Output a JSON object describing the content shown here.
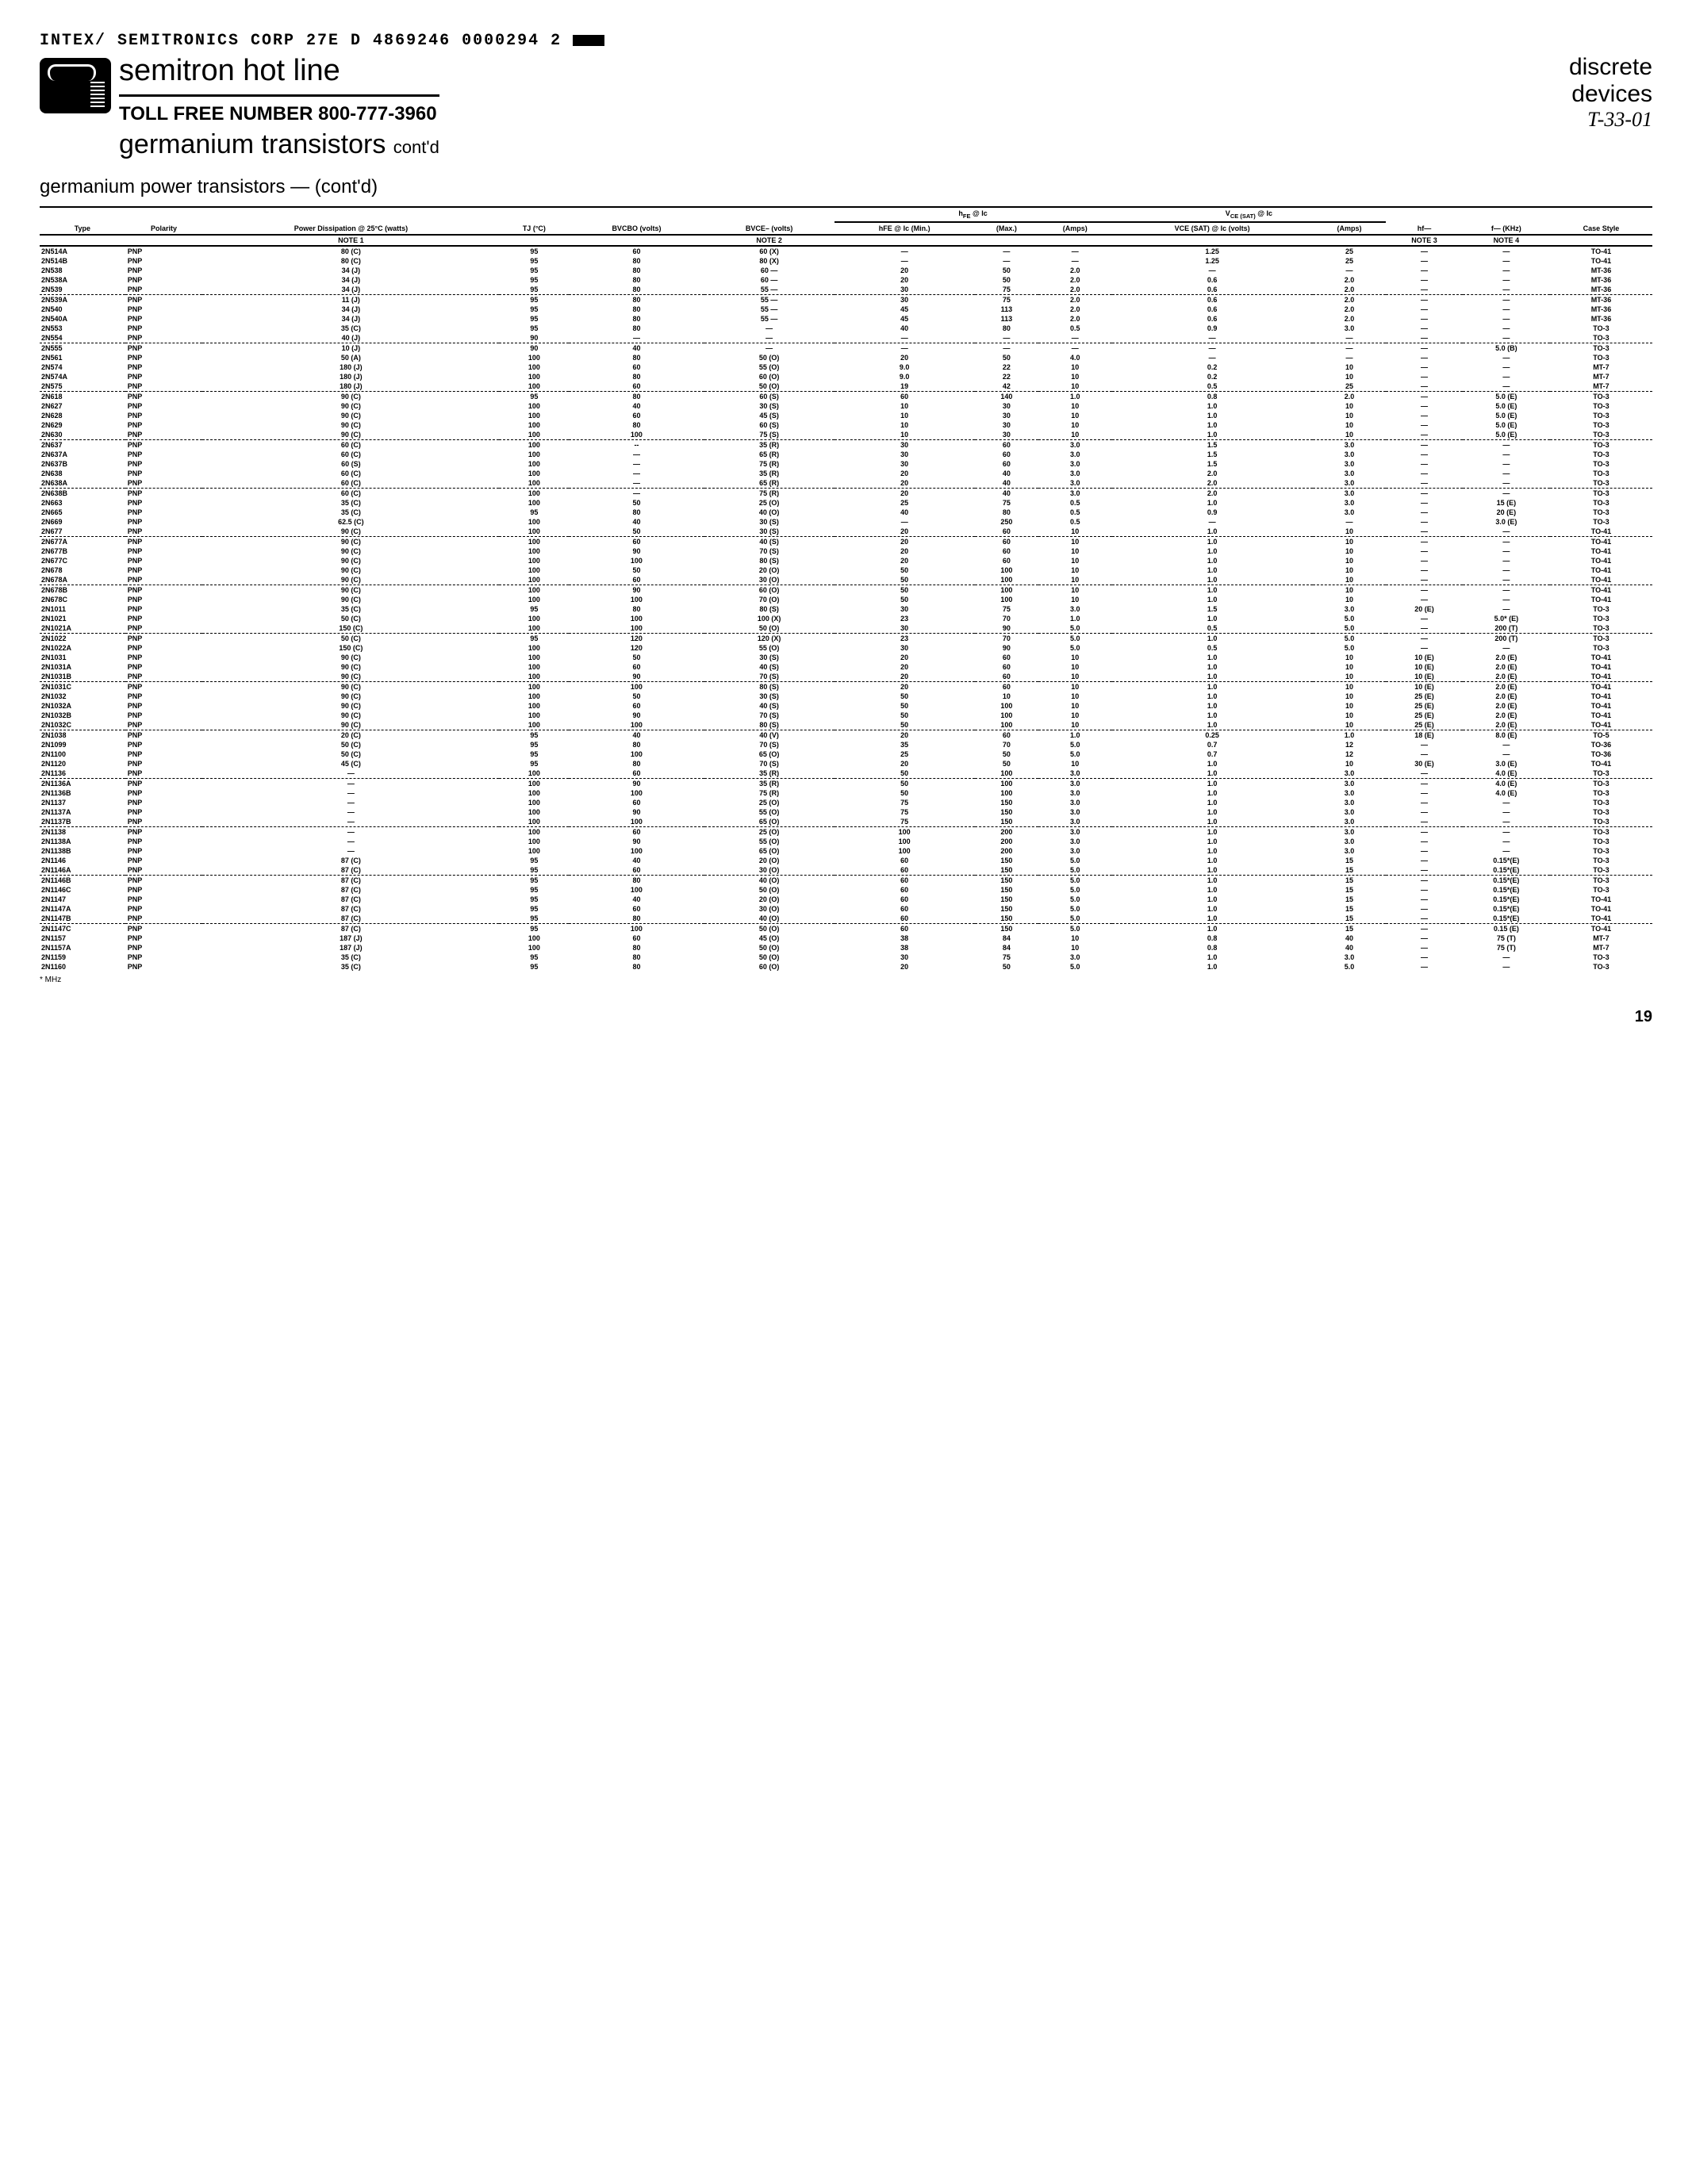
{
  "header": {
    "code_line": "INTEX/ SEMITRONICS CORP    27E D    4869246 0000294 2",
    "main_title": "semitron hot line",
    "toll_free": "TOLL FREE NUMBER 800-777-3960",
    "page_title": "germanium transistors",
    "contd": "cont'd",
    "side1": "discrete",
    "side2": "devices",
    "side_hand": "T-33-01",
    "subtitle": "germanium power transistors — (cont'd)"
  },
  "columns": [
    "Type",
    "Polarity",
    "Power Dissipation @ 25°C (watts)",
    "TJ (°C)",
    "BVCBO (volts)",
    "BVCE– (volts)",
    "hFE @ Ic (Min.)",
    "(Max.)",
    "(Amps)",
    "VCE (SAT) @ Ic (volts)",
    "(Amps)",
    "hf—",
    "f— (KHz)",
    "Case Style"
  ],
  "notes": {
    "c2": "NOTE 1",
    "c5": "NOTE 2",
    "c11": "NOTE 3",
    "c12": "NOTE 4"
  },
  "groups": [
    [
      [
        "2N514A",
        "PNP",
        "80 (C)",
        "95",
        "60",
        "60 (X)",
        "—",
        "—",
        "—",
        "1.25",
        "25",
        "—",
        "—",
        "TO-41"
      ],
      [
        "2N514B",
        "PNP",
        "80 (C)",
        "95",
        "80",
        "80 (X)",
        "—",
        "—",
        "—",
        "1.25",
        "25",
        "—",
        "—",
        "TO-41"
      ],
      [
        "2N538",
        "PNP",
        "34 (J)",
        "95",
        "80",
        "60 —",
        "20",
        "50",
        "2.0",
        "—",
        "—",
        "—",
        "—",
        "MT-36"
      ],
      [
        "2N538A",
        "PNP",
        "34 (J)",
        "95",
        "80",
        "60 —",
        "20",
        "50",
        "2.0",
        "0.6",
        "2.0",
        "—",
        "—",
        "MT-36"
      ],
      [
        "2N539",
        "PNP",
        "34 (J)",
        "95",
        "80",
        "55 —",
        "30",
        "75",
        "2.0",
        "0.6",
        "2.0",
        "—",
        "—",
        "MT-36"
      ]
    ],
    [
      [
        "2N539A",
        "PNP",
        "11 (J)",
        "95",
        "80",
        "55 —",
        "30",
        "75",
        "2.0",
        "0.6",
        "2.0",
        "—",
        "—",
        "MT-36"
      ],
      [
        "2N540",
        "PNP",
        "34 (J)",
        "95",
        "80",
        "55 —",
        "45",
        "113",
        "2.0",
        "0.6",
        "2.0",
        "—",
        "—",
        "MT-36"
      ],
      [
        "2N540A",
        "PNP",
        "34 (J)",
        "95",
        "80",
        "55 —",
        "45",
        "113",
        "2.0",
        "0.6",
        "2.0",
        "—",
        "—",
        "MT-36"
      ],
      [
        "2N553",
        "PNP",
        "35 (C)",
        "95",
        "80",
        "—",
        "40",
        "80",
        "0.5",
        "0.9",
        "3.0",
        "—",
        "—",
        "TO-3"
      ],
      [
        "2N554",
        "PNP",
        "40 (J)",
        "90",
        "—",
        "—",
        "—",
        "—",
        "—",
        "—",
        "—",
        "—",
        "—",
        "TO-3"
      ]
    ],
    [
      [
        "2N555",
        "PNP",
        "10 (J)",
        "90",
        "40",
        "—",
        "—",
        "—",
        "—",
        "—",
        "—",
        "—",
        "5.0 (B)",
        "TO-3"
      ],
      [
        "2N561",
        "PNP",
        "50 (A)",
        "100",
        "80",
        "50 (O)",
        "20",
        "50",
        "4.0",
        "—",
        "—",
        "—",
        "—",
        "TO-3"
      ],
      [
        "2N574",
        "PNP",
        "180 (J)",
        "100",
        "60",
        "55 (O)",
        "9.0",
        "22",
        "10",
        "0.2",
        "10",
        "—",
        "—",
        "MT-7"
      ],
      [
        "2N574A",
        "PNP",
        "180 (J)",
        "100",
        "80",
        "60 (O)",
        "9.0",
        "22",
        "10",
        "0.2",
        "10",
        "—",
        "—",
        "MT-7"
      ],
      [
        "2N575",
        "PNP",
        "180 (J)",
        "100",
        "60",
        "50 (O)",
        "19",
        "42",
        "10",
        "0.5",
        "25",
        "—",
        "—",
        "MT-7"
      ]
    ],
    [
      [
        "2N618",
        "PNP",
        "90 (C)",
        "95",
        "80",
        "60 (S)",
        "60",
        "140",
        "1.0",
        "0.8",
        "2.0",
        "—",
        "5.0 (E)",
        "TO-3"
      ],
      [
        "2N627",
        "PNP",
        "90 (C)",
        "100",
        "40",
        "30 (S)",
        "10",
        "30",
        "10",
        "1.0",
        "10",
        "—",
        "5.0 (E)",
        "TO-3"
      ],
      [
        "2N628",
        "PNP",
        "90 (C)",
        "100",
        "60",
        "45 (S)",
        "10",
        "30",
        "10",
        "1.0",
        "10",
        "—",
        "5.0 (E)",
        "TO-3"
      ],
      [
        "2N629",
        "PNP",
        "90 (C)",
        "100",
        "80",
        "60 (S)",
        "10",
        "30",
        "10",
        "1.0",
        "10",
        "—",
        "5.0 (E)",
        "TO-3"
      ],
      [
        "2N630",
        "PNP",
        "90 (C)",
        "100",
        "100",
        "75 (S)",
        "10",
        "30",
        "10",
        "1.0",
        "10",
        "—",
        "5.0 (E)",
        "TO-3"
      ]
    ],
    [
      [
        "2N637",
        "PNP",
        "60 (C)",
        "100",
        "--",
        "35 (R)",
        "30",
        "60",
        "3.0",
        "1.5",
        "3.0",
        "—",
        "—",
        "TO-3"
      ],
      [
        "2N637A",
        "PNP",
        "60 (C)",
        "100",
        "—",
        "65 (R)",
        "30",
        "60",
        "3.0",
        "1.5",
        "3.0",
        "—",
        "—",
        "TO-3"
      ],
      [
        "2N637B",
        "PNP",
        "60 (S)",
        "100",
        "—",
        "75 (R)",
        "30",
        "60",
        "3.0",
        "1.5",
        "3.0",
        "—",
        "—",
        "TO-3"
      ],
      [
        "2N638",
        "PNP",
        "60 (C)",
        "100",
        "—",
        "35 (R)",
        "20",
        "40",
        "3.0",
        "2.0",
        "3.0",
        "—",
        "—",
        "TO-3"
      ],
      [
        "2N638A",
        "PNP",
        "60 (C)",
        "100",
        "—",
        "65 (R)",
        "20",
        "40",
        "3.0",
        "2.0",
        "3.0",
        "—",
        "—",
        "TO-3"
      ]
    ],
    [
      [
        "2N638B",
        "PNP",
        "60 (C)",
        "100",
        "—",
        "75 (R)",
        "20",
        "40",
        "3.0",
        "2.0",
        "3.0",
        "—",
        "—",
        "TO-3"
      ],
      [
        "2N663",
        "PNP",
        "35 (C)",
        "100",
        "50",
        "25 (O)",
        "25",
        "75",
        "0.5",
        "1.0",
        "3.0",
        "—",
        "15 (E)",
        "TO-3"
      ],
      [
        "2N665",
        "PNP",
        "35 (C)",
        "95",
        "80",
        "40 (O)",
        "40",
        "80",
        "0.5",
        "0.9",
        "3.0",
        "—",
        "20 (E)",
        "TO-3"
      ],
      [
        "2N669",
        "PNP",
        "62.5 (C)",
        "100",
        "40",
        "30 (S)",
        "—",
        "250",
        "0.5",
        "—",
        "—",
        "—",
        "3.0 (E)",
        "TO-3"
      ],
      [
        "2N677",
        "PNP",
        "90 (C)",
        "100",
        "50",
        "30 (S)",
        "20",
        "60",
        "10",
        "1.0",
        "10",
        "—",
        "—",
        "TO-41"
      ]
    ],
    [
      [
        "2N677A",
        "PNP",
        "90 (C)",
        "100",
        "60",
        "40 (S)",
        "20",
        "60",
        "10",
        "1.0",
        "10",
        "—",
        "—",
        "TO-41"
      ],
      [
        "2N677B",
        "PNP",
        "90 (C)",
        "100",
        "90",
        "70 (S)",
        "20",
        "60",
        "10",
        "1.0",
        "10",
        "—",
        "—",
        "TO-41"
      ],
      [
        "2N677C",
        "PNP",
        "90 (C)",
        "100",
        "100",
        "80 (S)",
        "20",
        "60",
        "10",
        "1.0",
        "10",
        "—",
        "—",
        "TO-41"
      ],
      [
        "2N678",
        "PNP",
        "90 (C)",
        "100",
        "50",
        "20 (O)",
        "50",
        "100",
        "10",
        "1.0",
        "10",
        "—",
        "—",
        "TO-41"
      ],
      [
        "2N678A",
        "PNP",
        "90 (C)",
        "100",
        "60",
        "30 (O)",
        "50",
        "100",
        "10",
        "1.0",
        "10",
        "—",
        "—",
        "TO-41"
      ]
    ],
    [
      [
        "2N678B",
        "PNP",
        "90 (C)",
        "100",
        "90",
        "60 (O)",
        "50",
        "100",
        "10",
        "1.0",
        "10",
        "—",
        "—",
        "TO-41"
      ],
      [
        "2N678C",
        "PNP",
        "90 (C)",
        "100",
        "100",
        "70 (O)",
        "50",
        "100",
        "10",
        "1.0",
        "10",
        "—",
        "—",
        "TO-41"
      ],
      [
        "2N1011",
        "PNP",
        "35 (C)",
        "95",
        "80",
        "80 (S)",
        "30",
        "75",
        "3.0",
        "1.5",
        "3.0",
        "20 (E)",
        "—",
        "TO-3"
      ],
      [
        "2N1021",
        "PNP",
        "50 (C)",
        "100",
        "100",
        "100 (X)",
        "23",
        "70",
        "1.0",
        "1.0",
        "5.0",
        "—",
        "5.0* (E)",
        "TO-3"
      ],
      [
        "2N1021A",
        "PNP",
        "150 (C)",
        "100",
        "100",
        "50 (O)",
        "30",
        "90",
        "5.0",
        "0.5",
        "5.0",
        "—",
        "200 (T)",
        "TO-3"
      ]
    ],
    [
      [
        "2N1022",
        "PNP",
        "50 (C)",
        "95",
        "120",
        "120 (X)",
        "23",
        "70",
        "5.0",
        "1.0",
        "5.0",
        "—",
        "200 (T)",
        "TO-3"
      ],
      [
        "2N1022A",
        "PNP",
        "150 (C)",
        "100",
        "120",
        "55 (O)",
        "30",
        "90",
        "5.0",
        "0.5",
        "5.0",
        "—",
        "—",
        "TO-3"
      ],
      [
        "2N1031",
        "PNP",
        "90 (C)",
        "100",
        "50",
        "30 (S)",
        "20",
        "60",
        "10",
        "1.0",
        "10",
        "10 (E)",
        "2.0 (E)",
        "TO-41"
      ],
      [
        "2N1031A",
        "PNP",
        "90 (C)",
        "100",
        "60",
        "40 (S)",
        "20",
        "60",
        "10",
        "1.0",
        "10",
        "10 (E)",
        "2.0 (E)",
        "TO-41"
      ],
      [
        "2N1031B",
        "PNP",
        "90 (C)",
        "100",
        "90",
        "70 (S)",
        "20",
        "60",
        "10",
        "1.0",
        "10",
        "10 (E)",
        "2.0 (E)",
        "TO-41"
      ]
    ],
    [
      [
        "2N1031C",
        "PNP",
        "90 (C)",
        "100",
        "100",
        "80 (S)",
        "20",
        "60",
        "10",
        "1.0",
        "10",
        "10 (E)",
        "2.0 (E)",
        "TO-41"
      ],
      [
        "2N1032",
        "PNP",
        "90 (C)",
        "100",
        "50",
        "30 (S)",
        "50",
        "10",
        "10",
        "1.0",
        "10",
        "25 (E)",
        "2.0 (E)",
        "TO-41"
      ],
      [
        "2N1032A",
        "PNP",
        "90 (C)",
        "100",
        "60",
        "40 (S)",
        "50",
        "100",
        "10",
        "1.0",
        "10",
        "25 (E)",
        "2.0 (E)",
        "TO-41"
      ],
      [
        "2N1032B",
        "PNP",
        "90 (C)",
        "100",
        "90",
        "70 (S)",
        "50",
        "100",
        "10",
        "1.0",
        "10",
        "25 (E)",
        "2.0 (E)",
        "TO-41"
      ],
      [
        "2N1032C",
        "PNP",
        "90 (C)",
        "100",
        "100",
        "80 (S)",
        "50",
        "100",
        "10",
        "1.0",
        "10",
        "25 (E)",
        "2.0 (E)",
        "TO-41"
      ]
    ],
    [
      [
        "2N1038",
        "PNP",
        "20 (C)",
        "95",
        "40",
        "40 (V)",
        "20",
        "60",
        "1.0",
        "0.25",
        "1.0",
        "18 (E)",
        "8.0 (E)",
        "TO-5"
      ],
      [
        "2N1099",
        "PNP",
        "50 (C)",
        "95",
        "80",
        "70 (S)",
        "35",
        "70",
        "5.0",
        "0.7",
        "12",
        "—",
        "—",
        "TO-36"
      ],
      [
        "2N1100",
        "PNP",
        "50 (C)",
        "95",
        "100",
        "65 (O)",
        "25",
        "50",
        "5.0",
        "0.7",
        "12",
        "—",
        "—",
        "TO-36"
      ],
      [
        "2N1120",
        "PNP",
        "45 (C)",
        "95",
        "80",
        "70 (S)",
        "20",
        "50",
        "10",
        "1.0",
        "10",
        "30 (E)",
        "3.0 (E)",
        "TO-41"
      ],
      [
        "2N1136",
        "PNP",
        "—",
        "100",
        "60",
        "35 (R)",
        "50",
        "100",
        "3.0",
        "1.0",
        "3.0",
        "—",
        "4.0 (E)",
        "TO-3"
      ]
    ],
    [
      [
        "2N1136A",
        "PNP",
        "—",
        "100",
        "90",
        "35 (R)",
        "50",
        "100",
        "3.0",
        "1.0",
        "3.0",
        "—",
        "4.0 (E)",
        "TO-3"
      ],
      [
        "2N1136B",
        "PNP",
        "—",
        "100",
        "100",
        "75 (R)",
        "50",
        "100",
        "3.0",
        "1.0",
        "3.0",
        "—",
        "4.0 (E)",
        "TO-3"
      ],
      [
        "2N1137",
        "PNP",
        "—",
        "100",
        "60",
        "25 (O)",
        "75",
        "150",
        "3.0",
        "1.0",
        "3.0",
        "—",
        "—",
        "TO-3"
      ],
      [
        "2N1137A",
        "PNP",
        "—",
        "100",
        "90",
        "55 (O)",
        "75",
        "150",
        "3.0",
        "1.0",
        "3.0",
        "—",
        "—",
        "TO-3"
      ],
      [
        "2N1137B",
        "PNP",
        "—",
        "100",
        "100",
        "65 (O)",
        "75",
        "150",
        "3.0",
        "1.0",
        "3.0",
        "—",
        "—",
        "TO-3"
      ]
    ],
    [
      [
        "2N1138",
        "PNP",
        "—",
        "100",
        "60",
        "25 (O)",
        "100",
        "200",
        "3.0",
        "1.0",
        "3.0",
        "—",
        "—",
        "TO-3"
      ],
      [
        "2N1138A",
        "PNP",
        "—",
        "100",
        "90",
        "55 (O)",
        "100",
        "200",
        "3.0",
        "1.0",
        "3.0",
        "—",
        "—",
        "TO-3"
      ],
      [
        "2N1138B",
        "PNP",
        "—",
        "100",
        "100",
        "65 (O)",
        "100",
        "200",
        "3.0",
        "1.0",
        "3.0",
        "—",
        "—",
        "TO-3"
      ],
      [
        "2N1146",
        "PNP",
        "87 (C)",
        "95",
        "40",
        "20 (O)",
        "60",
        "150",
        "5.0",
        "1.0",
        "15",
        "—",
        "0.15*(E)",
        "TO-3"
      ],
      [
        "2N1146A",
        "PNP",
        "87 (C)",
        "95",
        "60",
        "30 (O)",
        "60",
        "150",
        "5.0",
        "1.0",
        "15",
        "—",
        "0.15*(E)",
        "TO-3"
      ]
    ],
    [
      [
        "2N1146B",
        "PNP",
        "87 (C)",
        "95",
        "80",
        "40 (O)",
        "60",
        "150",
        "5.0",
        "1.0",
        "15",
        "—",
        "0.15*(E)",
        "TO-3"
      ],
      [
        "2N1146C",
        "PNP",
        "87 (C)",
        "95",
        "100",
        "50 (O)",
        "60",
        "150",
        "5.0",
        "1.0",
        "15",
        "—",
        "0.15*(E)",
        "TO-3"
      ],
      [
        "2N1147",
        "PNP",
        "87 (C)",
        "95",
        "40",
        "20 (O)",
        "60",
        "150",
        "5.0",
        "1.0",
        "15",
        "—",
        "0.15*(E)",
        "TO-41"
      ],
      [
        "2N1147A",
        "PNP",
        "87 (C)",
        "95",
        "60",
        "30 (O)",
        "60",
        "150",
        "5.0",
        "1.0",
        "15",
        "—",
        "0.15*(E)",
        "TO-41"
      ],
      [
        "2N1147B",
        "PNP",
        "87 (C)",
        "95",
        "80",
        "40 (O)",
        "60",
        "150",
        "5.0",
        "1.0",
        "15",
        "—",
        "0.15*(E)",
        "TO-41"
      ]
    ],
    [
      [
        "2N1147C",
        "PNP",
        "87 (C)",
        "95",
        "100",
        "50 (O)",
        "60",
        "150",
        "5.0",
        "1.0",
        "15",
        "—",
        "0.15 (E)",
        "TO-41"
      ],
      [
        "2N1157",
        "PNP",
        "187 (J)",
        "100",
        "60",
        "45 (O)",
        "38",
        "84",
        "10",
        "0.8",
        "40",
        "—",
        "75 (T)",
        "MT-7"
      ],
      [
        "2N1157A",
        "PNP",
        "187 (J)",
        "100",
        "80",
        "50 (O)",
        "38",
        "84",
        "10",
        "0.8",
        "40",
        "—",
        "75 (T)",
        "MT-7"
      ],
      [
        "2N1159",
        "PNP",
        "35 (C)",
        "95",
        "80",
        "50 (O)",
        "30",
        "75",
        "3.0",
        "1.0",
        "3.0",
        "—",
        "—",
        "TO-3"
      ],
      [
        "2N1160",
        "PNP",
        "35 (C)",
        "95",
        "80",
        "60 (O)",
        "20",
        "50",
        "5.0",
        "1.0",
        "5.0",
        "—",
        "—",
        "TO-3"
      ]
    ]
  ],
  "footnote": "* MHz",
  "page": "19"
}
